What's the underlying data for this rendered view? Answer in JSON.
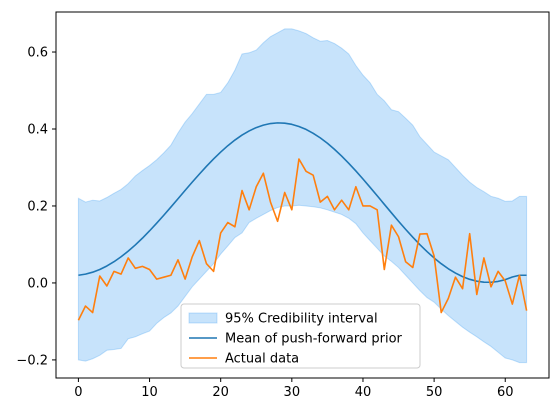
{
  "chart_data": {
    "type": "line",
    "title": "",
    "xlabel": "",
    "ylabel": "",
    "xlim": [
      -3.15,
      66.15
    ],
    "ylim": [
      -0.247,
      0.704
    ],
    "grid": false,
    "legend_position": "lower-center",
    "x_ticks": [
      0,
      10,
      20,
      30,
      40,
      50,
      60
    ],
    "y_ticks": [
      -0.2,
      0.0,
      0.2,
      0.4,
      0.6
    ],
    "x_tick_labels": [
      "0",
      "10",
      "20",
      "30",
      "40",
      "50",
      "60"
    ],
    "y_tick_labels": [
      "−0.2",
      "0.0",
      "0.2",
      "0.4",
      "0.6"
    ],
    "band": {
      "name": "95% Credibility interval",
      "color": "#1f8ef1",
      "x": [
        0,
        1,
        2,
        3,
        4,
        5,
        6,
        7,
        8,
        9,
        10,
        11,
        12,
        13,
        14,
        15,
        16,
        17,
        18,
        19,
        20,
        21,
        22,
        23,
        24,
        25,
        26,
        27,
        28,
        29,
        30,
        31,
        32,
        33,
        34,
        35,
        36,
        37,
        38,
        39,
        40,
        41,
        42,
        43,
        44,
        45,
        46,
        47,
        48,
        49,
        50,
        51,
        52,
        53,
        54,
        55,
        56,
        57,
        58,
        59,
        60,
        61,
        62,
        63
      ],
      "upper": [
        0.22,
        0.21,
        0.215,
        0.213,
        0.222,
        0.233,
        0.243,
        0.258,
        0.278,
        0.292,
        0.305,
        0.32,
        0.338,
        0.358,
        0.39,
        0.418,
        0.44,
        0.465,
        0.49,
        0.49,
        0.495,
        0.52,
        0.553,
        0.595,
        0.598,
        0.605,
        0.624,
        0.64,
        0.65,
        0.66,
        0.66,
        0.655,
        0.648,
        0.637,
        0.628,
        0.63,
        0.622,
        0.61,
        0.595,
        0.565,
        0.54,
        0.52,
        0.49,
        0.473,
        0.45,
        0.445,
        0.428,
        0.41,
        0.38,
        0.36,
        0.34,
        0.33,
        0.32,
        0.3,
        0.28,
        0.262,
        0.248,
        0.237,
        0.225,
        0.22,
        0.212,
        0.213,
        0.225,
        0.225
      ],
      "lower": [
        -0.2,
        -0.203,
        -0.197,
        -0.188,
        -0.175,
        -0.173,
        -0.17,
        -0.145,
        -0.14,
        -0.132,
        -0.125,
        -0.105,
        -0.09,
        -0.078,
        -0.06,
        -0.035,
        -0.01,
        0.01,
        0.03,
        0.05,
        0.075,
        0.096,
        0.118,
        0.13,
        0.157,
        0.168,
        0.178,
        0.188,
        0.196,
        0.2,
        0.2,
        0.202,
        0.2,
        0.198,
        0.195,
        0.19,
        0.184,
        0.178,
        0.168,
        0.154,
        0.13,
        0.11,
        0.09,
        0.07,
        0.056,
        0.04,
        0.02,
        0.0,
        -0.02,
        -0.038,
        -0.05,
        -0.068,
        -0.085,
        -0.1,
        -0.115,
        -0.128,
        -0.14,
        -0.153,
        -0.165,
        -0.18,
        -0.195,
        -0.2,
        -0.207,
        -0.207
      ]
    },
    "series": [
      {
        "name": "Mean of push-forward prior",
        "color": "#1f77b4",
        "x": [
          0,
          1,
          2,
          3,
          4,
          5,
          6,
          7,
          8,
          9,
          10,
          11,
          12,
          13,
          14,
          15,
          16,
          17,
          18,
          19,
          20,
          21,
          22,
          23,
          24,
          25,
          26,
          27,
          28,
          29,
          30,
          31,
          32,
          33,
          34,
          35,
          36,
          37,
          38,
          39,
          40,
          41,
          42,
          43,
          44,
          45,
          46,
          47,
          48,
          49,
          50,
          51,
          52,
          53,
          54,
          55,
          56,
          57,
          58,
          59,
          60,
          61,
          62,
          63
        ],
        "values": [
          0.02,
          0.0229,
          0.0279,
          0.035,
          0.0441,
          0.0551,
          0.068,
          0.0826,
          0.0988,
          0.1164,
          0.1353,
          0.1552,
          0.1759,
          0.1972,
          0.2188,
          0.2405,
          0.2619,
          0.2828,
          0.303,
          0.3222,
          0.3401,
          0.3566,
          0.3713,
          0.3842,
          0.395,
          0.4037,
          0.4101,
          0.4142,
          0.4159,
          0.4151,
          0.4121,
          0.4066,
          0.3989,
          0.3889,
          0.3769,
          0.3629,
          0.3471,
          0.3297,
          0.3109,
          0.291,
          0.2701,
          0.2485,
          0.2265,
          0.2043,
          0.1822,
          0.1604,
          0.1392,
          0.1188,
          0.0995,
          0.0815,
          0.0649,
          0.05,
          0.0368,
          0.0256,
          0.0164,
          0.0094,
          0.0045,
          0.002,
          0.0018,
          0.004,
          0.0085,
          0.0154,
          0.02,
          0.02
        ]
      },
      {
        "name": "Actual data",
        "color": "#ff7f0e",
        "x": [
          0,
          1,
          2,
          3,
          4,
          5,
          6,
          7,
          8,
          9,
          10,
          11,
          12,
          13,
          14,
          15,
          16,
          17,
          18,
          19,
          20,
          21,
          22,
          23,
          24,
          25,
          26,
          27,
          28,
          29,
          30,
          31,
          32,
          33,
          34,
          35,
          36,
          37,
          38,
          39,
          40,
          41,
          42,
          43,
          44,
          45,
          46,
          47,
          48,
          49,
          50,
          51,
          52,
          53,
          54,
          55,
          56,
          57,
          58,
          59,
          60,
          61,
          62,
          63
        ],
        "values": [
          -0.097,
          -0.06,
          -0.077,
          0.018,
          -0.008,
          0.03,
          0.023,
          0.065,
          0.038,
          0.043,
          0.035,
          0.01,
          0.015,
          0.02,
          0.06,
          0.01,
          0.068,
          0.11,
          0.05,
          0.03,
          0.13,
          0.157,
          0.146,
          0.24,
          0.19,
          0.25,
          0.285,
          0.21,
          0.16,
          0.235,
          0.19,
          0.322,
          0.29,
          0.28,
          0.21,
          0.225,
          0.19,
          0.215,
          0.19,
          0.25,
          0.2,
          0.2,
          0.19,
          0.035,
          0.15,
          0.12,
          0.055,
          0.04,
          0.127,
          0.128,
          0.07,
          -0.077,
          -0.04,
          0.015,
          -0.015,
          0.128,
          -0.03,
          0.065,
          -0.01,
          0.03,
          0.005,
          -0.055,
          0.02,
          -0.072
        ]
      }
    ],
    "legend": [
      {
        "label": "95% Credibility interval",
        "kind": "patch"
      },
      {
        "label": "Mean of push-forward prior",
        "kind": "line"
      },
      {
        "label": "Actual data",
        "kind": "line"
      }
    ]
  }
}
